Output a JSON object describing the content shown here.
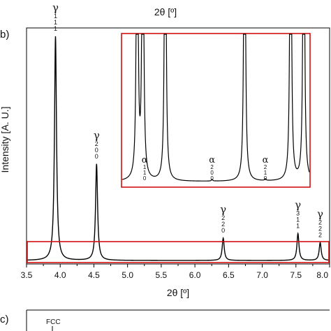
{
  "figure": {
    "top_xlabel": "2θ [º]",
    "panel_b_label": "b)",
    "panel_c_label": "c)",
    "panel_c_text": "FCC"
  },
  "chart_data": {
    "type": "line",
    "title": "",
    "xlabel": "2θ [º]",
    "ylabel": "Intensity [A. U.]",
    "xlim": [
      3.5,
      8.0
    ],
    "ylim": [
      0,
      1
    ],
    "x_ticks": [
      "3.5",
      "4.0",
      "4.5",
      "5.0",
      "5.5",
      "6.0",
      "6.5",
      "7.0",
      "7.5",
      "8.0"
    ],
    "grid": false,
    "series": [
      {
        "color": "#000000",
        "peaks": [
          {
            "x": 3.93,
            "height": 1.0,
            "label_phase": "γ",
            "label_hkl": "111"
          },
          {
            "x": 4.54,
            "height": 0.43,
            "label_phase": "γ",
            "label_hkl": "200"
          },
          {
            "x": 6.42,
            "height": 0.1,
            "label_phase": "γ",
            "label_hkl": "220"
          },
          {
            "x": 7.53,
            "height": 0.12,
            "label_phase": "γ",
            "label_hkl": "311"
          },
          {
            "x": 7.86,
            "height": 0.08,
            "label_phase": "γ",
            "label_hkl": "222"
          }
        ]
      }
    ],
    "highlight_color": "#d01010",
    "inset": {
      "peaks": [
        {
          "x": 0.08,
          "label_phase": "",
          "label_hkl": ""
        },
        {
          "x": 0.11,
          "label_phase": "",
          "label_hkl": ""
        },
        {
          "x": 0.23,
          "label_phase": "",
          "label_hkl": ""
        },
        {
          "x": 0.654,
          "label_phase": "",
          "label_hkl": ""
        },
        {
          "x": 0.9,
          "label_phase": "",
          "label_hkl": ""
        },
        {
          "x": 0.97,
          "label_phase": "",
          "label_hkl": ""
        }
      ],
      "small_peaks": [
        {
          "x": 0.12,
          "label_phase": "α",
          "label_hkl": "110"
        },
        {
          "x": 0.48,
          "label_phase": "α",
          "label_hkl": "200"
        },
        {
          "x": 0.765,
          "label_phase": "α",
          "label_hkl": "210"
        }
      ]
    }
  }
}
